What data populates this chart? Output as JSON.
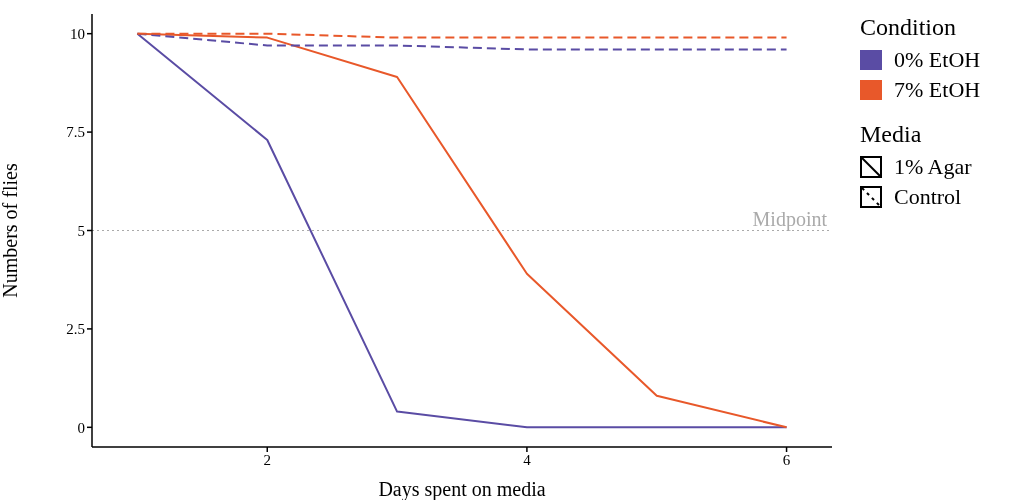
{
  "chart_data": {
    "type": "line",
    "xlabel": "Days spent on media",
    "ylabel": "Numbers of flies",
    "legend_title": [
      "Condition",
      "Media"
    ],
    "x": [
      1,
      2,
      3,
      4,
      5,
      6
    ],
    "series": [
      {
        "name": "0% EtOH",
        "color": "#5a4ca4",
        "line_style": "solid",
        "values": [
          10,
          7.3,
          0.4,
          0,
          0,
          0
        ]
      },
      {
        "name": "7% EtOH",
        "color": "#e8582a",
        "line_style": "solid",
        "values": [
          10,
          9.9,
          8.9,
          3.9,
          0.8,
          0
        ]
      },
      {
        "color": "#5a4ca4",
        "line_style": "dashed",
        "values": [
          10,
          9.7,
          9.7,
          9.6,
          9.6,
          9.6
        ]
      },
      {
        "color": "#e8582a",
        "line_style": "dashed",
        "values": [
          10,
          10,
          9.9,
          9.9,
          9.9,
          9.9
        ]
      }
    ],
    "annotations": [
      "1% Agar",
      "Control"
    ],
    "xlim": [
      0.65,
      6.35
    ],
    "xticks": [
      2,
      4,
      6
    ],
    "ylim": [
      -0.5,
      10.5
    ],
    "yticks": [
      0,
      2.5,
      5,
      7.5,
      10
    ],
    "ref_lines": [
      {
        "axis": "y",
        "value": 5,
        "label": "Midpoint",
        "color": "#aaaaaa",
        "line_style": "dotted"
      }
    ],
    "grid": false,
    "legend": "right",
    "marker": "none"
  }
}
